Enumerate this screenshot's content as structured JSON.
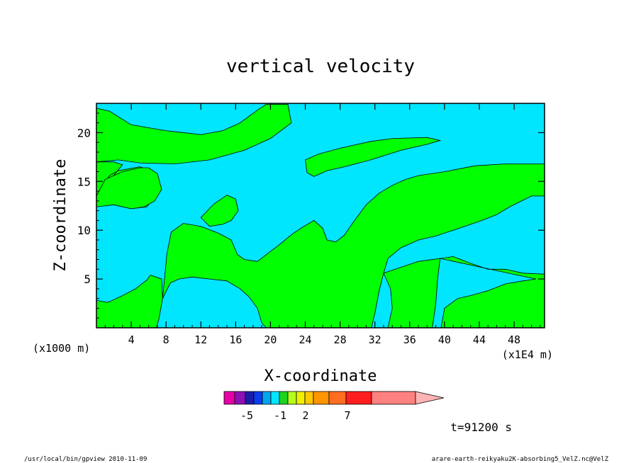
{
  "chart_data": {
    "type": "heatmap",
    "title": "vertical velocity",
    "xlabel": "X-coordinate",
    "ylabel": "Z-coordinate",
    "x_unit": "(x1E4 m)",
    "y_unit": "(x1000 m)",
    "xlim": [
      0,
      51.5
    ],
    "ylim": [
      0,
      23
    ],
    "xticks": [
      "4",
      "8",
      "12",
      "16",
      "20",
      "24",
      "28",
      "32",
      "36",
      "40",
      "44",
      "48"
    ],
    "yticks": [
      "5",
      "10",
      "15",
      "20"
    ],
    "colorbar": {
      "colors": [
        "#e600a8",
        "#8c10b4",
        "#1c1ca8",
        "#0a3cf0",
        "#00a6f0",
        "#00e6ff",
        "#1fd21f",
        "#b4ff1e",
        "#f0f000",
        "#ffc800",
        "#ff9600",
        "#ff6e1e",
        "#ff1e1e",
        "#ff8080",
        "#ffb4b4"
      ],
      "tick_labels": [
        "-5",
        "-1",
        "2",
        "7"
      ]
    },
    "time_label": "t=91200 s",
    "footer_left": "/usr/local/bin/gpview  2010-11-09",
    "footer_right": "arare-earth-reikyaku2K-absorbing5_VelZ.nc@VelZ",
    "regions": [
      {
        "value": "positive",
        "color": "#00ff00",
        "polygons": [
          [
            [
              0,
              2.8
            ],
            [
              1.3,
              2.6
            ],
            [
              3,
              3.3
            ],
            [
              4.5,
              4
            ],
            [
              5.8,
              4.9
            ],
            [
              6.2,
              5.4
            ],
            [
              7.5,
              5
            ],
            [
              7.6,
              3
            ],
            [
              7.2,
              1
            ],
            [
              6.9,
              0
            ],
            [
              0,
              0
            ]
          ],
          [
            [
              7.6,
              3
            ],
            [
              8.1,
              7.6
            ],
            [
              8.6,
              9.8
            ],
            [
              10,
              10.7
            ],
            [
              12,
              10.4
            ],
            [
              14,
              9.7
            ],
            [
              15.5,
              9
            ],
            [
              16.2,
              7.5
            ],
            [
              17,
              7
            ],
            [
              18.5,
              6.8
            ],
            [
              21,
              8.5
            ],
            [
              22.5,
              9.6
            ],
            [
              23.5,
              10.2
            ],
            [
              25,
              11
            ],
            [
              26,
              10.2
            ],
            [
              26.5,
              9
            ],
            [
              27.5,
              8.8
            ],
            [
              28.5,
              9.5
            ],
            [
              29.5,
              10.8
            ],
            [
              31,
              12.6
            ],
            [
              32.5,
              13.8
            ],
            [
              34,
              14.6
            ],
            [
              35.5,
              15.2
            ],
            [
              37,
              15.6
            ],
            [
              40,
              16
            ],
            [
              43.5,
              16.6
            ],
            [
              47,
              16.8
            ],
            [
              51.5,
              16.8
            ],
            [
              51.5,
              13.5
            ],
            [
              50,
              13.5
            ],
            [
              47.5,
              12.4
            ],
            [
              46,
              11.6
            ],
            [
              44.3,
              11
            ],
            [
              43,
              10.6
            ],
            [
              41,
              10
            ],
            [
              39,
              9.4
            ],
            [
              37,
              9
            ],
            [
              35,
              8.2
            ],
            [
              33.5,
              7.1
            ],
            [
              33,
              5.6
            ],
            [
              32.5,
              3.8
            ],
            [
              32,
              1.5
            ],
            [
              31.6,
              0
            ],
            [
              19.5,
              0
            ],
            [
              19,
              0.5
            ],
            [
              18.5,
              2
            ],
            [
              17.5,
              3.2
            ],
            [
              16.5,
              4
            ],
            [
              15,
              4.8
            ],
            [
              13,
              5
            ],
            [
              11,
              5.2
            ],
            [
              9.5,
              5
            ],
            [
              8.5,
              4.6
            ]
          ],
          [
            [
              33,
              5.6
            ],
            [
              35,
              6.2
            ],
            [
              37,
              6.8
            ],
            [
              39.5,
              7.1
            ],
            [
              39.2,
              5
            ],
            [
              39,
              2.5
            ],
            [
              38.6,
              0
            ],
            [
              33.5,
              0
            ],
            [
              34,
              2
            ],
            [
              33.8,
              4
            ]
          ],
          [
            [
              39.5,
              7.1
            ],
            [
              41,
              7.3
            ],
            [
              43,
              6.6
            ],
            [
              45,
              6
            ],
            [
              47,
              6
            ],
            [
              49,
              5.6
            ],
            [
              51.5,
              5.5
            ],
            [
              51.5,
              0
            ],
            [
              39.6,
              0
            ],
            [
              40,
              2
            ],
            [
              41.5,
              3
            ],
            [
              43,
              3.3
            ],
            [
              45,
              3.8
            ],
            [
              47,
              4.5
            ],
            [
              49,
              4.8
            ],
            [
              50.5,
              5
            ]
          ],
          [
            [
              0,
              13.5
            ],
            [
              1.5,
              15.6
            ],
            [
              2.5,
              16.1
            ],
            [
              5,
              16.5
            ],
            [
              6.5,
              16
            ],
            [
              7.2,
              14
            ],
            [
              5.8,
              12.4
            ],
            [
              4,
              12.2
            ],
            [
              2,
              12.6
            ],
            [
              0,
              13.3
            ],
            [
              0,
              17
            ],
            [
              2,
              17
            ],
            [
              3,
              16.7
            ]
          ],
          [
            [
              0,
              13.5
            ],
            [
              1,
              15.2
            ],
            [
              3,
              16
            ],
            [
              5,
              16.4
            ],
            [
              6,
              16.4
            ],
            [
              7,
              15.8
            ],
            [
              7.5,
              14.2
            ],
            [
              6.7,
              13
            ],
            [
              5.5,
              12.4
            ],
            [
              4,
              12.2
            ],
            [
              2,
              12.6
            ],
            [
              0,
              12.4
            ]
          ],
          [
            [
              0,
              17
            ],
            [
              0,
              22.5
            ],
            [
              1.5,
              22.2
            ],
            [
              4,
              20.8
            ],
            [
              8,
              20.2
            ],
            [
              12,
              19.8
            ],
            [
              14.5,
              20.2
            ],
            [
              16.5,
              21
            ],
            [
              18.5,
              22.3
            ],
            [
              19.5,
              22.9
            ],
            [
              22,
              22.9
            ],
            [
              22.4,
              21
            ],
            [
              20,
              19.4
            ],
            [
              17,
              18.2
            ],
            [
              13,
              17.2
            ],
            [
              9,
              16.8
            ],
            [
              5,
              16.9
            ],
            [
              2.5,
              17.2
            ]
          ],
          [
            [
              24,
              17.2
            ],
            [
              25.5,
              17.8
            ],
            [
              28,
              18.4
            ],
            [
              31.5,
              19.1
            ],
            [
              34,
              19.4
            ],
            [
              38,
              19.5
            ],
            [
              39.5,
              19.2
            ],
            [
              38,
              18.8
            ],
            [
              35,
              18.2
            ],
            [
              31.5,
              17.2
            ],
            [
              28.5,
              16.5
            ],
            [
              26.5,
              16.1
            ],
            [
              25,
              15.5
            ],
            [
              24.2,
              15.9
            ]
          ],
          [
            [
              12,
              11.3
            ],
            [
              13.5,
              12.7
            ],
            [
              15,
              13.6
            ],
            [
              16,
              13.2
            ],
            [
              16.3,
              12
            ],
            [
              15.5,
              11
            ],
            [
              14.5,
              10.6
            ],
            [
              13,
              10.4
            ]
          ]
        ]
      }
    ]
  }
}
